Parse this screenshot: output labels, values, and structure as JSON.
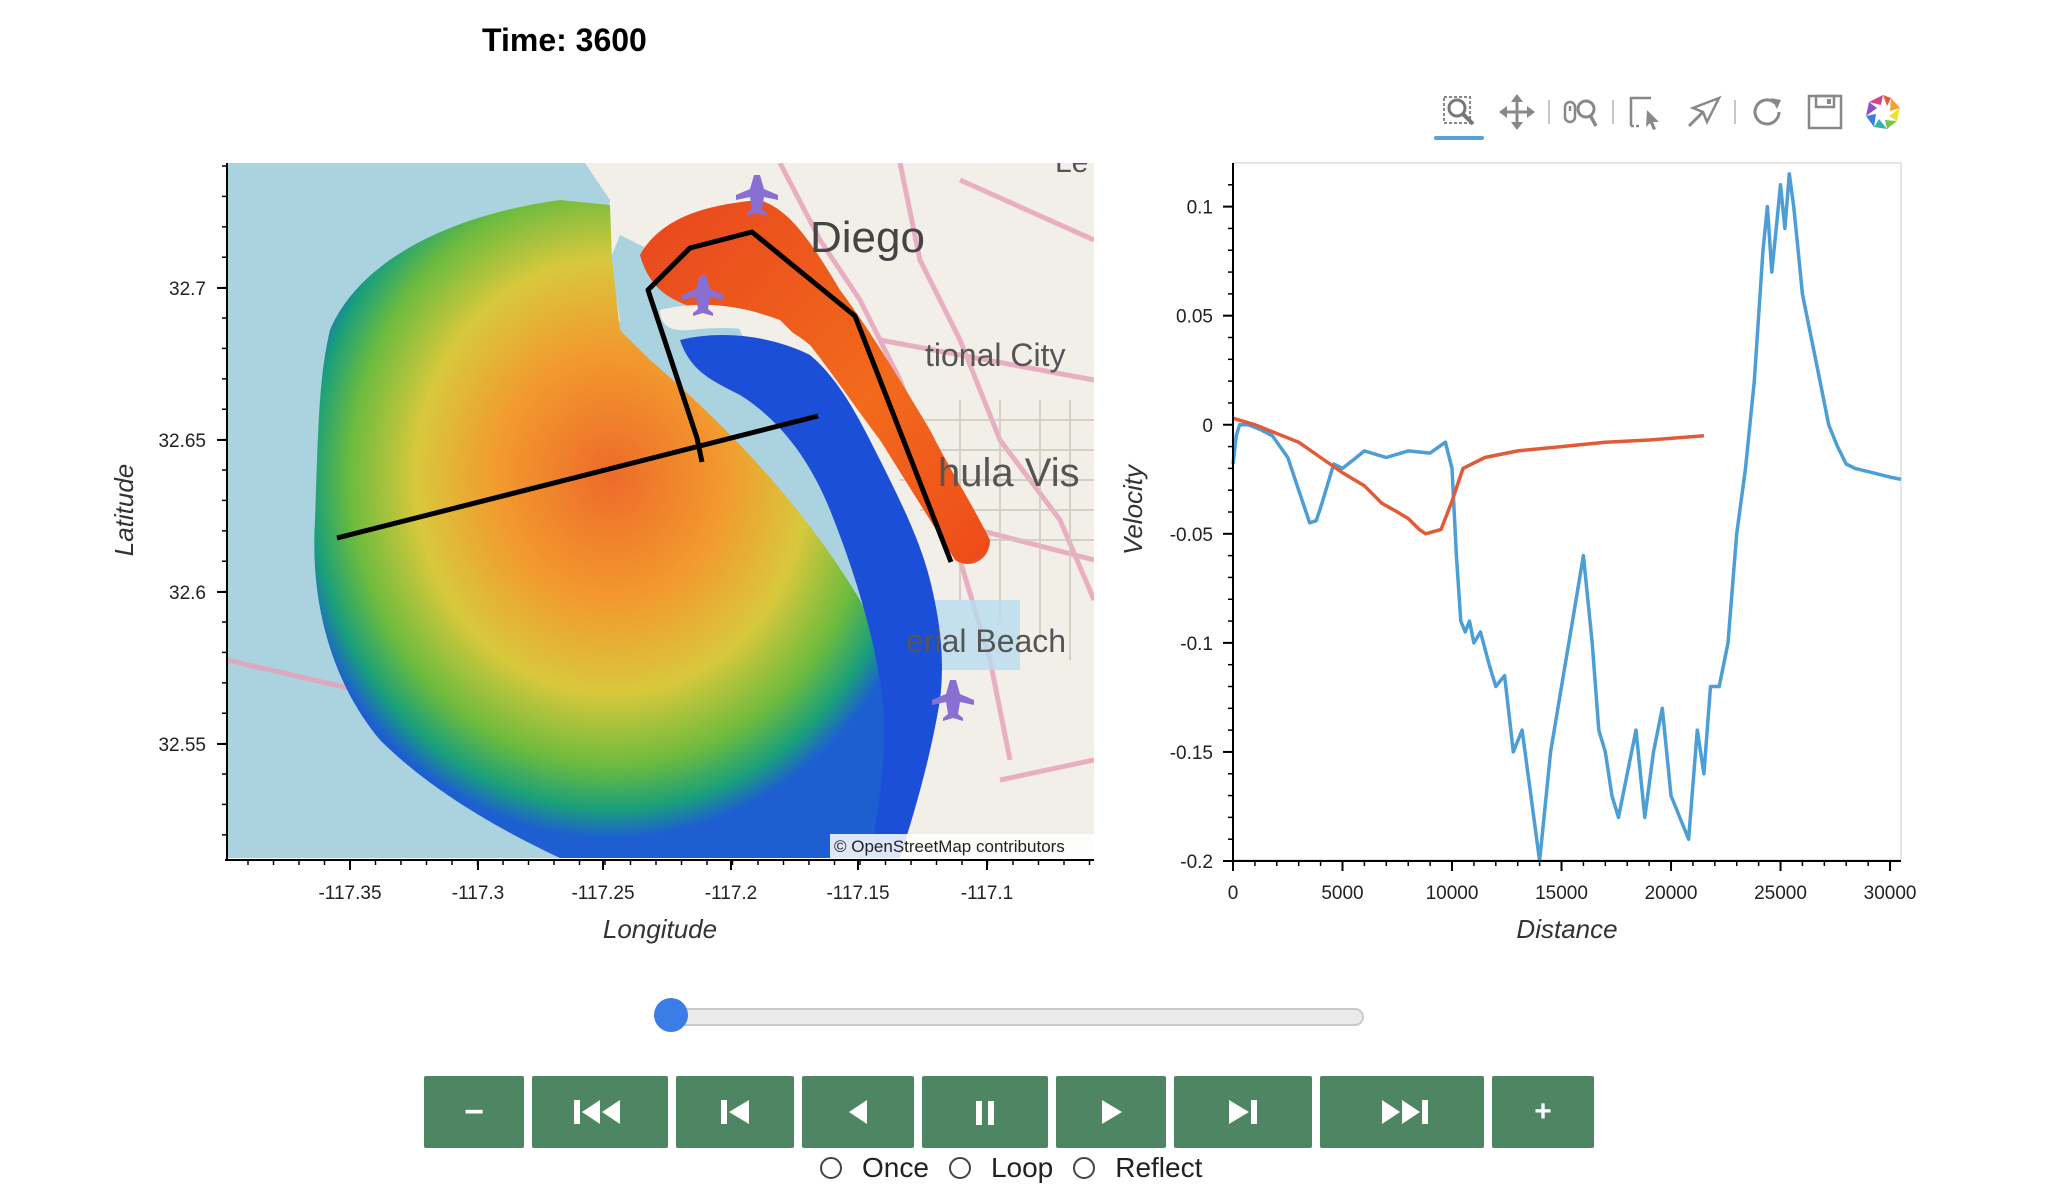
{
  "title": "Time: 3600",
  "toolbar": {
    "tools": [
      {
        "name": "box-zoom",
        "active": true
      },
      {
        "name": "pan",
        "active": false
      },
      {
        "name": "wheel-zoom",
        "active": false
      },
      {
        "name": "box-select",
        "active": false
      },
      {
        "name": "tap",
        "active": false
      },
      {
        "name": "reset",
        "active": false
      },
      {
        "name": "save",
        "active": false
      },
      {
        "name": "bokeh-logo",
        "active": false
      }
    ]
  },
  "map_plot": {
    "attribution": "© OpenStreetMap contributors",
    "xlabel": "Longitude",
    "ylabel": "Latitude",
    "xticks": [
      "-117.35",
      "-117.3",
      "-117.25",
      "-117.2",
      "-117.15",
      "-117.1"
    ],
    "yticks": [
      "32.7",
      "32.65",
      "32.6",
      "32.55"
    ],
    "place_labels": [
      "Diego",
      "tional City",
      "hula Vis",
      "erial Beach",
      "Le"
    ],
    "colors": {
      "water": "#aad3df",
      "land": "#f2efe9",
      "road": "#e8a0b8",
      "line": "#000000"
    }
  },
  "chart_data": {
    "type": "line",
    "xlabel": "Distance",
    "ylabel": "Velocity",
    "xlim": [
      0,
      30500
    ],
    "ylim": [
      -0.2,
      0.12
    ],
    "xticks": [
      "0",
      "5000",
      "10000",
      "15000",
      "20000",
      "25000",
      "30000"
    ],
    "yticks": [
      "0.1",
      "0.05",
      "0",
      "-0.05",
      "-0.1",
      "-0.15",
      "-0.2"
    ],
    "series": [
      {
        "color": "#4c9ed6",
        "x": [
          0,
          150,
          300,
          700,
          1200,
          1800,
          2500,
          3000,
          3500,
          3800,
          4000,
          4300,
          4600,
          5000,
          5500,
          6000,
          7000,
          8000,
          9000,
          9700,
          10000,
          10200,
          10400,
          10600,
          10800,
          11000,
          11300,
          11700,
          12000,
          12400,
          12800,
          13200,
          13600,
          14000,
          14200,
          14500,
          15000,
          15500,
          16000,
          16400,
          16700,
          17000,
          17300,
          17600,
          18000,
          18400,
          18800,
          19200,
          19600,
          20000,
          20400,
          20800,
          21200,
          21500,
          21800,
          22200,
          22600,
          23000,
          23400,
          23800,
          24200,
          24400,
          24600,
          24800,
          25000,
          25200,
          25400,
          25600,
          25800,
          26000,
          26400,
          26800,
          27200,
          27600,
          28000,
          28400,
          28800,
          29200,
          29600,
          30000,
          30500
        ],
        "values": [
          -0.018,
          -0.005,
          0.0,
          0.0,
          -0.002,
          -0.005,
          -0.015,
          -0.03,
          -0.045,
          -0.044,
          -0.038,
          -0.028,
          -0.018,
          -0.02,
          -0.016,
          -0.012,
          -0.015,
          -0.012,
          -0.013,
          -0.008,
          -0.02,
          -0.06,
          -0.09,
          -0.095,
          -0.09,
          -0.1,
          -0.095,
          -0.11,
          -0.12,
          -0.115,
          -0.15,
          -0.14,
          -0.17,
          -0.2,
          -0.18,
          -0.15,
          -0.12,
          -0.09,
          -0.06,
          -0.1,
          -0.14,
          -0.15,
          -0.17,
          -0.18,
          -0.16,
          -0.14,
          -0.18,
          -0.15,
          -0.13,
          -0.17,
          -0.18,
          -0.19,
          -0.14,
          -0.16,
          -0.12,
          -0.12,
          -0.1,
          -0.05,
          -0.02,
          0.02,
          0.08,
          0.1,
          0.07,
          0.09,
          0.11,
          0.09,
          0.115,
          0.1,
          0.08,
          0.06,
          0.04,
          0.02,
          0.0,
          -0.01,
          -0.018,
          -0.02,
          -0.021,
          -0.022,
          -0.023,
          -0.024,
          -0.025
        ]
      },
      {
        "color": "#e35b36",
        "x": [
          0,
          1000,
          2000,
          3000,
          4000,
          5000,
          6000,
          6800,
          7500,
          8000,
          8500,
          8800,
          9500,
          10000,
          10500,
          11500,
          13000,
          15000,
          17000,
          19000,
          21500
        ],
        "values": [
          0.003,
          0.0,
          -0.004,
          -0.008,
          -0.015,
          -0.022,
          -0.028,
          -0.036,
          -0.04,
          -0.043,
          -0.048,
          -0.05,
          -0.048,
          -0.035,
          -0.02,
          -0.015,
          -0.012,
          -0.01,
          -0.008,
          -0.007,
          -0.005
        ]
      }
    ]
  },
  "slider": {
    "value": 0,
    "min": 0,
    "max": 1
  },
  "player": {
    "buttons": [
      "slower",
      "first",
      "previous",
      "reverse",
      "pause",
      "play",
      "next",
      "last",
      "faster"
    ],
    "slower_label": "−",
    "faster_label": "+",
    "modes": [
      "Once",
      "Loop",
      "Reflect"
    ],
    "selected_mode": ""
  }
}
